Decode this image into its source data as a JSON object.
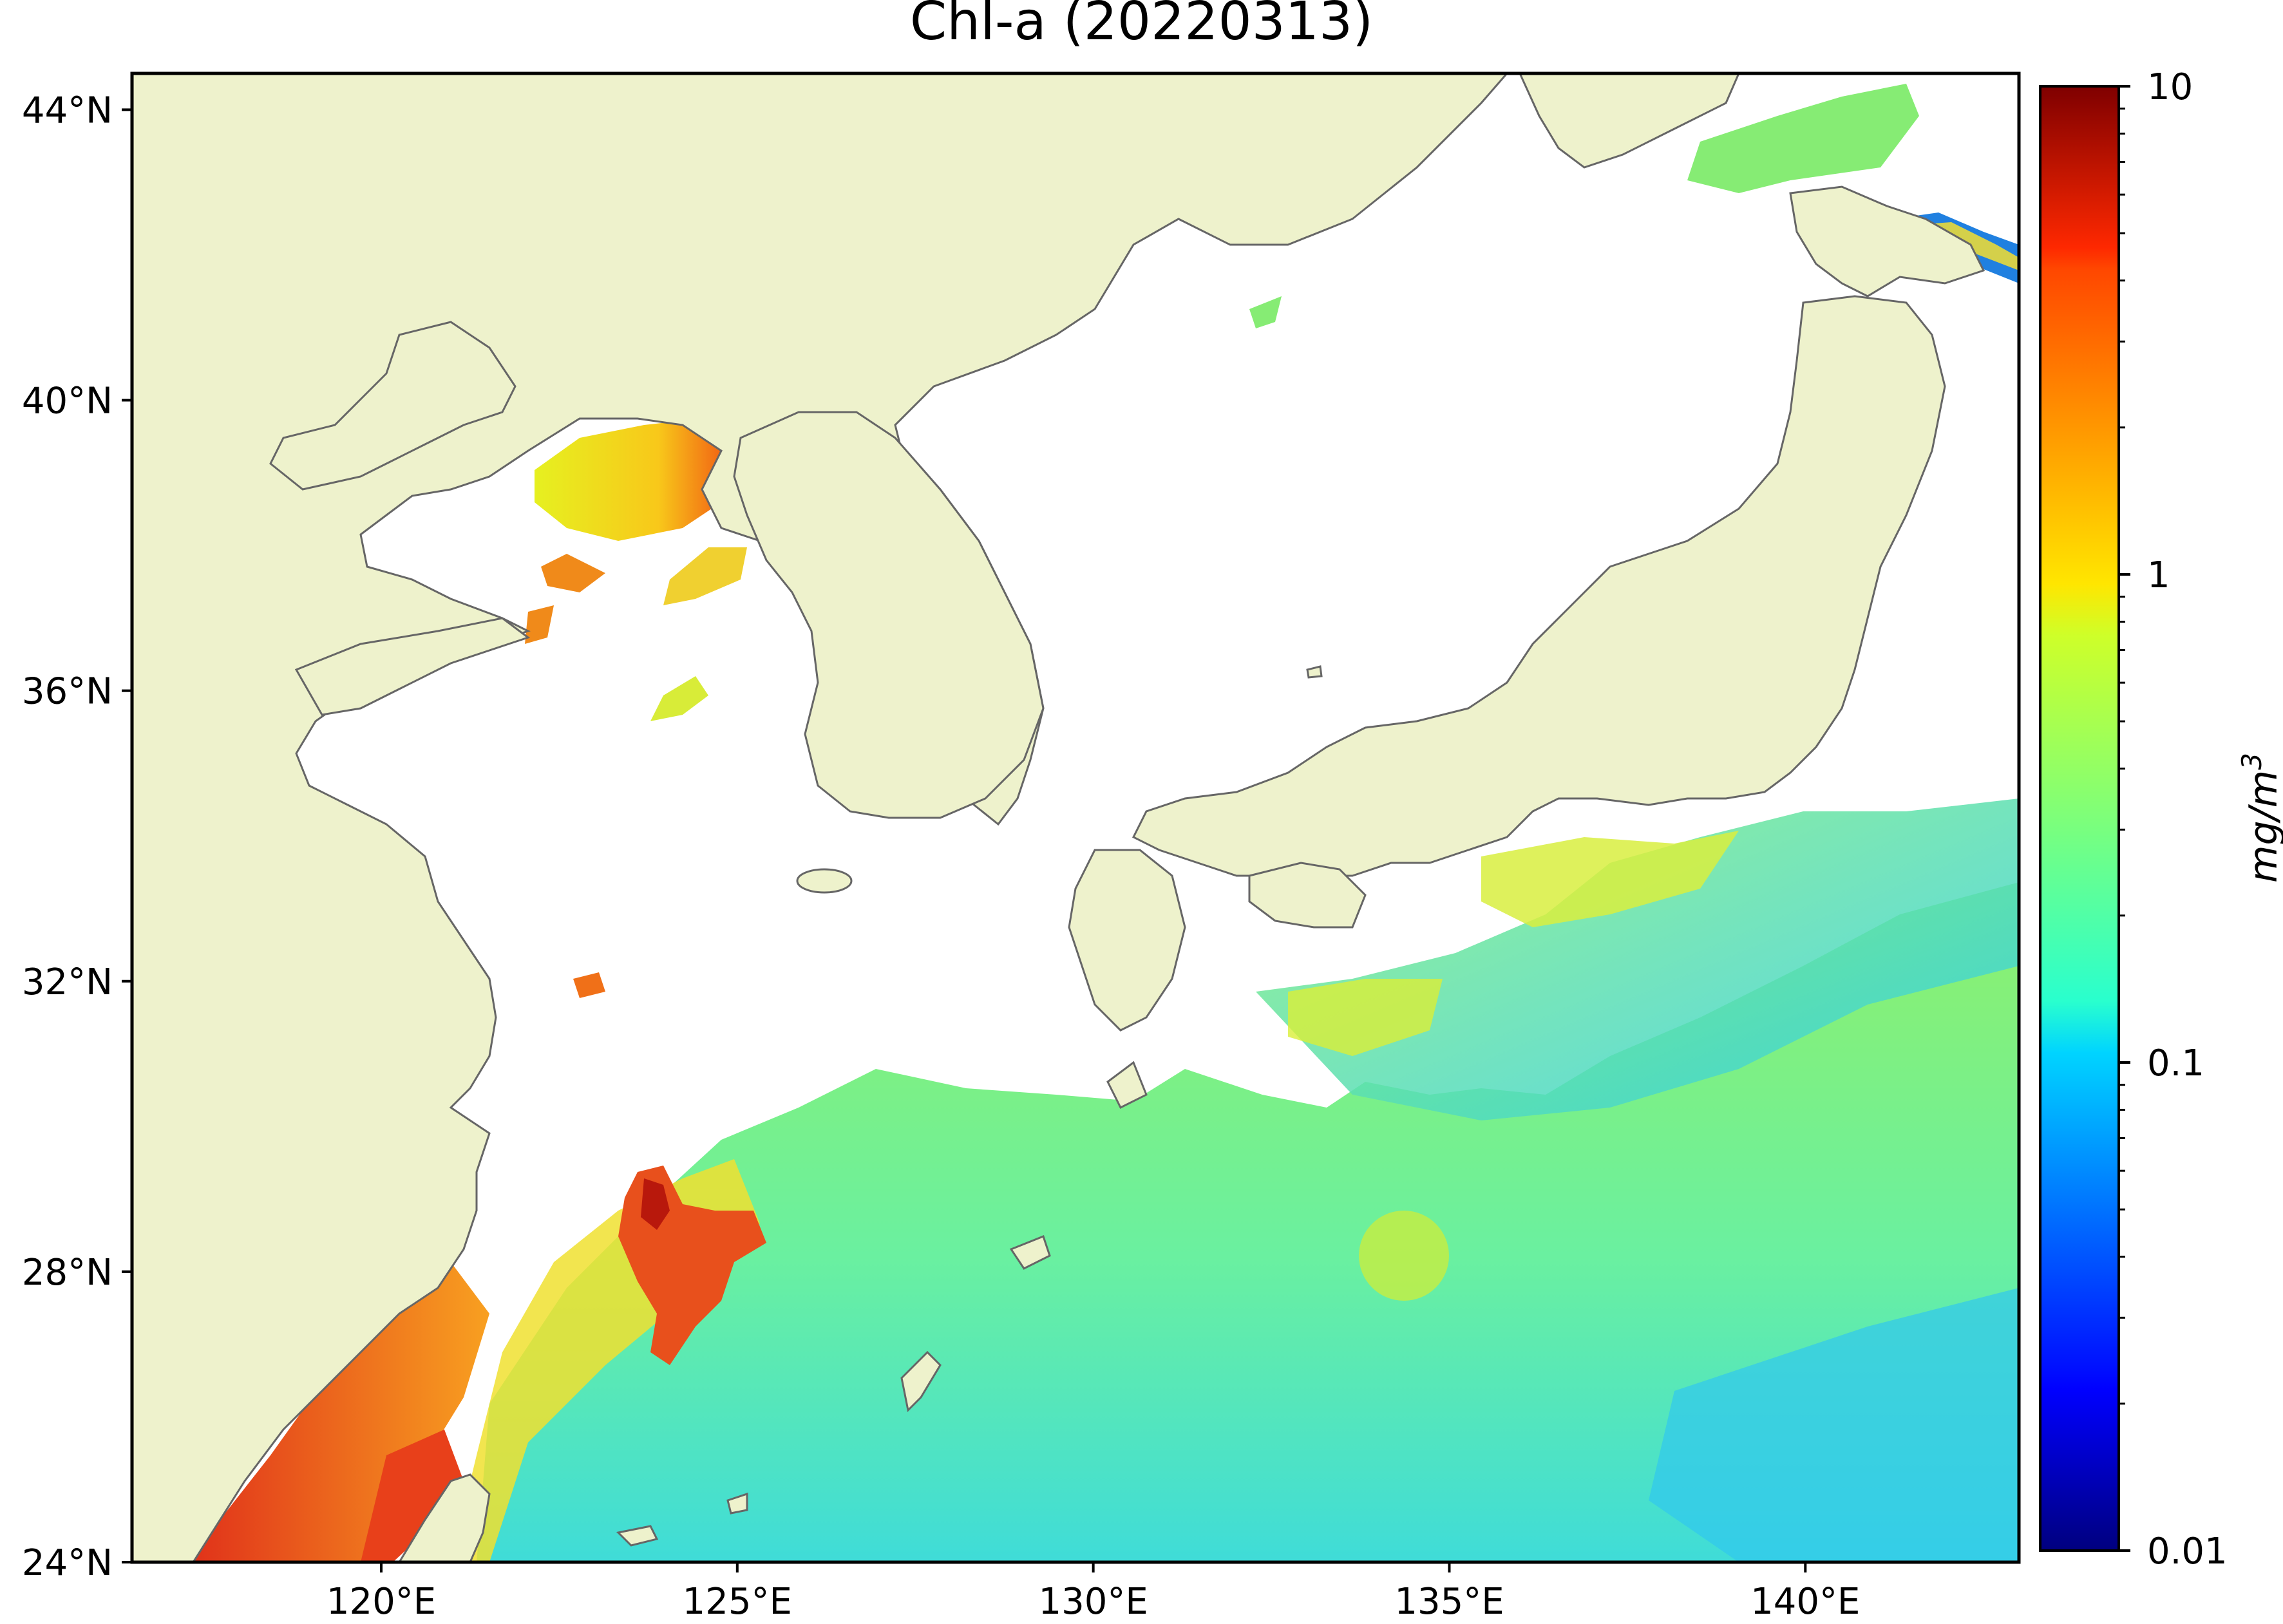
{
  "title": "Chl-a (20220313)",
  "colors": {
    "land": "#eef2cc",
    "no_data": "#ffffff",
    "coastline": "#666666"
  },
  "chart_data": {
    "type": "heatmap",
    "title": "Chl-a (20220313)",
    "projection": "equirectangular",
    "extent": {
      "lon": [
        116.5,
        143
      ],
      "lat": [
        24,
        44.5
      ]
    },
    "x_ticks": [
      {
        "value": 120,
        "label": "120°E"
      },
      {
        "value": 125,
        "label": "125°E"
      },
      {
        "value": 130,
        "label": "130°E"
      },
      {
        "value": 135,
        "label": "135°E"
      },
      {
        "value": 140,
        "label": "140°E"
      }
    ],
    "y_ticks": [
      {
        "value": 24,
        "label": "24°N"
      },
      {
        "value": 28,
        "label": "28°N"
      },
      {
        "value": 32,
        "label": "32°N"
      },
      {
        "value": 36,
        "label": "36°N"
      },
      {
        "value": 40,
        "label": "40°N"
      },
      {
        "value": 44,
        "label": "44°N"
      }
    ],
    "colorbar": {
      "label": "mg/m",
      "label_superscript": "3",
      "scale": "log",
      "range": [
        0.01,
        10
      ],
      "colormap": "jet",
      "ticks": [
        {
          "value": 10,
          "label": "10"
        },
        {
          "value": 1,
          "label": "1"
        },
        {
          "value": 0.1,
          "label": "0.1"
        },
        {
          "value": 0.01,
          "label": "0.01"
        }
      ]
    }
  }
}
